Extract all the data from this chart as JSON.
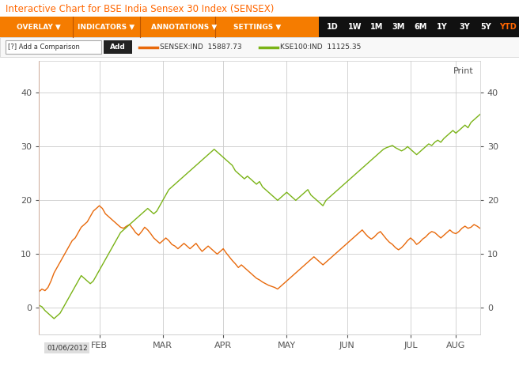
{
  "title": "Interactive Chart for BSE India Sensex 30 Index (SENSEX)",
  "title_color": "#ff6600",
  "toolbar_items": [
    "OVERLAY ▼",
    "INDICATORS ▼",
    "ANNOTATIONS ▼",
    "SETTINGS ▼"
  ],
  "time_buttons": [
    "1D",
    "1W",
    "1M",
    "3M",
    "6M",
    "1Y",
    "3Y",
    "5Y",
    "YTD"
  ],
  "sensex_label": "SENSEX:IND  15887.73",
  "kse_label": "KSE100:IND  11125.35",
  "sensex_color": "#e8690b",
  "kse_color": "#7ab317",
  "bg_color": "#ffffff",
  "chart_bg": "#ffffff",
  "grid_color": "#cccccc",
  "toolbar_bg": "#f57c00",
  "timebar_bg": "#111111",
  "ytd_color": "#ff6600",
  "x_labels": [
    "FEB",
    "MAR",
    "APR",
    "MAY",
    "JUN",
    "JUL",
    "AUG"
  ],
  "y_ticks": [
    0,
    10,
    20,
    30,
    40
  ],
  "ylim": [
    -5,
    46
  ],
  "start_label": "01/06/2012",
  "sensex_data": [
    3.0,
    3.5,
    3.2,
    3.8,
    5.0,
    6.5,
    7.5,
    8.5,
    9.5,
    10.5,
    11.5,
    12.5,
    13.0,
    14.0,
    15.0,
    15.5,
    16.0,
    17.0,
    18.0,
    18.5,
    19.0,
    18.5,
    17.5,
    17.0,
    16.5,
    16.0,
    15.5,
    15.0,
    14.8,
    15.2,
    15.5,
    14.8,
    14.0,
    13.5,
    14.2,
    15.0,
    14.5,
    13.8,
    13.0,
    12.5,
    12.0,
    12.5,
    13.0,
    12.5,
    11.8,
    11.5,
    11.0,
    11.5,
    12.0,
    11.5,
    11.0,
    11.5,
    12.0,
    11.2,
    10.5,
    11.0,
    11.5,
    11.0,
    10.5,
    10.0,
    10.5,
    11.0,
    10.2,
    9.5,
    8.8,
    8.2,
    7.5,
    8.0,
    7.5,
    7.0,
    6.5,
    6.0,
    5.5,
    5.2,
    4.8,
    4.5,
    4.2,
    4.0,
    3.8,
    3.5,
    4.0,
    4.5,
    5.0,
    5.5,
    6.0,
    6.5,
    7.0,
    7.5,
    8.0,
    8.5,
    9.0,
    9.5,
    9.0,
    8.5,
    8.0,
    8.5,
    9.0,
    9.5,
    10.0,
    10.5,
    11.0,
    11.5,
    12.0,
    12.5,
    13.0,
    13.5,
    14.0,
    14.5,
    13.8,
    13.2,
    12.8,
    13.2,
    13.8,
    14.2,
    13.5,
    12.8,
    12.2,
    11.8,
    11.2,
    10.8,
    11.2,
    11.8,
    12.5,
    13.0,
    12.5,
    11.8,
    12.2,
    12.8,
    13.2,
    13.8,
    14.2,
    14.0,
    13.5,
    13.0,
    13.5,
    14.0,
    14.5,
    14.0,
    13.8,
    14.2,
    14.8,
    15.2,
    14.8,
    15.0,
    15.5,
    15.2,
    14.8
  ],
  "kse_data": [
    0.5,
    0.2,
    -0.5,
    -1.0,
    -1.5,
    -2.0,
    -1.5,
    -1.0,
    0.0,
    1.0,
    2.0,
    3.0,
    4.0,
    5.0,
    6.0,
    5.5,
    5.0,
    4.5,
    5.0,
    6.0,
    7.0,
    8.0,
    9.0,
    10.0,
    11.0,
    12.0,
    13.0,
    14.0,
    14.5,
    15.0,
    15.5,
    16.0,
    16.5,
    17.0,
    17.5,
    18.0,
    18.5,
    18.0,
    17.5,
    18.0,
    19.0,
    20.0,
    21.0,
    22.0,
    22.5,
    23.0,
    23.5,
    24.0,
    24.5,
    25.0,
    25.5,
    26.0,
    26.5,
    27.0,
    27.5,
    28.0,
    28.5,
    29.0,
    29.5,
    29.0,
    28.5,
    28.0,
    27.5,
    27.0,
    26.5,
    25.5,
    25.0,
    24.5,
    24.0,
    24.5,
    24.0,
    23.5,
    23.0,
    23.5,
    22.5,
    22.0,
    21.5,
    21.0,
    20.5,
    20.0,
    20.5,
    21.0,
    21.5,
    21.0,
    20.5,
    20.0,
    20.5,
    21.0,
    21.5,
    22.0,
    21.0,
    20.5,
    20.0,
    19.5,
    19.0,
    20.0,
    20.5,
    21.0,
    21.5,
    22.0,
    22.5,
    23.0,
    23.5,
    24.0,
    24.5,
    25.0,
    25.5,
    26.0,
    26.5,
    27.0,
    27.5,
    28.0,
    28.5,
    29.0,
    29.5,
    29.8,
    30.0,
    30.2,
    29.8,
    29.5,
    29.2,
    29.5,
    30.0,
    29.5,
    29.0,
    28.5,
    29.0,
    29.5,
    30.0,
    30.5,
    30.2,
    30.8,
    31.2,
    30.8,
    31.5,
    32.0,
    32.5,
    33.0,
    32.5,
    33.0,
    33.5,
    34.0,
    33.5,
    34.5,
    35.0,
    35.5,
    36.0
  ]
}
